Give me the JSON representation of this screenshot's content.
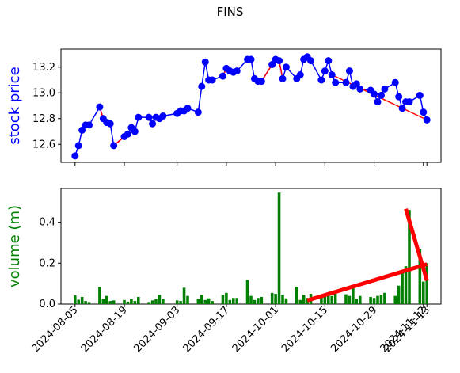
{
  "figure": {
    "title": "FINS"
  },
  "chart_data": [
    {
      "type": "line",
      "title": "",
      "xlabel": "",
      "ylabel": "stock price",
      "ylabel_color": "#0000ff",
      "ylim": [
        12.46,
        13.34
      ],
      "yticks": [
        "12.6",
        "12.8",
        "13.0",
        "13.2"
      ],
      "grid": false,
      "line_color": "#0000ff",
      "trend_color": "#ff0000",
      "x": [
        "2024-08-05",
        "2024-08-06",
        "2024-08-07",
        "2024-08-08",
        "2024-08-09",
        "2024-08-12",
        "2024-08-13",
        "2024-08-14",
        "2024-08-15",
        "2024-08-16",
        "2024-08-19",
        "2024-08-20",
        "2024-08-21",
        "2024-08-22",
        "2024-08-23",
        "2024-08-26",
        "2024-08-27",
        "2024-08-28",
        "2024-08-29",
        "2024-08-30",
        "2024-09-03",
        "2024-09-04",
        "2024-09-05",
        "2024-09-06",
        "2024-09-09",
        "2024-09-10",
        "2024-09-11",
        "2024-09-12",
        "2024-09-13",
        "2024-09-16",
        "2024-09-17",
        "2024-09-18",
        "2024-09-19",
        "2024-09-20",
        "2024-09-23",
        "2024-09-24",
        "2024-09-25",
        "2024-09-26",
        "2024-09-27",
        "2024-09-30",
        "2024-10-01",
        "2024-10-02",
        "2024-10-03",
        "2024-10-04",
        "2024-10-07",
        "2024-10-08",
        "2024-10-09",
        "2024-10-10",
        "2024-10-11",
        "2024-10-14",
        "2024-10-15",
        "2024-10-16",
        "2024-10-17",
        "2024-10-18",
        "2024-10-21",
        "2024-10-22",
        "2024-10-23",
        "2024-10-24",
        "2024-10-25",
        "2024-10-28",
        "2024-10-29",
        "2024-10-30",
        "2024-10-31",
        "2024-11-01",
        "2024-11-04",
        "2024-11-05",
        "2024-11-06",
        "2024-11-07",
        "2024-11-08",
        "2024-11-11",
        "2024-11-12",
        "2024-11-13"
      ],
      "values": [
        12.51,
        12.59,
        12.71,
        12.75,
        12.75,
        12.89,
        12.8,
        12.77,
        12.76,
        12.59,
        12.66,
        12.68,
        12.73,
        12.7,
        12.81,
        12.81,
        12.76,
        12.81,
        12.8,
        12.82,
        12.84,
        12.86,
        12.86,
        12.88,
        12.85,
        13.05,
        13.24,
        13.1,
        13.1,
        13.13,
        13.19,
        13.17,
        13.16,
        13.17,
        13.26,
        13.26,
        13.11,
        13.09,
        13.09,
        13.22,
        13.26,
        13.25,
        13.11,
        13.2,
        13.11,
        13.14,
        13.26,
        13.28,
        13.25,
        13.1,
        13.17,
        13.25,
        13.14,
        13.08,
        13.08,
        13.17,
        13.05,
        13.07,
        13.03,
        13.02,
        12.99,
        12.93,
        12.98,
        13.03,
        13.08,
        12.97,
        12.88,
        12.93,
        12.93,
        12.98,
        12.85,
        12.79
      ],
      "trendlines": [
        {
          "from": "2024-08-12",
          "to": "2024-08-13"
        },
        {
          "from": "2024-08-16",
          "to": "2024-08-19"
        },
        {
          "from": "2024-09-16",
          "to": "2024-09-17"
        },
        {
          "from": "2024-09-27",
          "to": "2024-09-30"
        },
        {
          "from": "2024-10-02",
          "to": "2024-10-03"
        },
        {
          "from": "2024-10-17",
          "to": "2024-11-13"
        }
      ]
    },
    {
      "type": "bar",
      "title": "",
      "xlabel": "",
      "ylabel": "volume (m)",
      "ylabel_color": "#008000",
      "ylim": [
        0,
        0.565
      ],
      "yticks": [
        "0.0",
        "0.2",
        "0.4"
      ],
      "grid": false,
      "bar_color": "#008000",
      "trend_color": "#ff0000",
      "xticks": [
        "2024-08-05",
        "2024-08-19",
        "2024-09-03",
        "2024-09-17",
        "2024-10-01",
        "2024-10-15",
        "2024-10-29",
        "2024-11-12",
        "2024-11-13"
      ],
      "x": [
        "2024-08-05",
        "2024-08-06",
        "2024-08-07",
        "2024-08-08",
        "2024-08-09",
        "2024-08-12",
        "2024-08-13",
        "2024-08-14",
        "2024-08-15",
        "2024-08-16",
        "2024-08-19",
        "2024-08-20",
        "2024-08-21",
        "2024-08-22",
        "2024-08-23",
        "2024-08-26",
        "2024-08-27",
        "2024-08-28",
        "2024-08-29",
        "2024-08-30",
        "2024-09-03",
        "2024-09-04",
        "2024-09-05",
        "2024-09-06",
        "2024-09-09",
        "2024-09-10",
        "2024-09-11",
        "2024-09-12",
        "2024-09-13",
        "2024-09-16",
        "2024-09-17",
        "2024-09-18",
        "2024-09-19",
        "2024-09-20",
        "2024-09-23",
        "2024-09-24",
        "2024-09-25",
        "2024-09-26",
        "2024-09-27",
        "2024-09-30",
        "2024-10-01",
        "2024-10-02",
        "2024-10-03",
        "2024-10-04",
        "2024-10-07",
        "2024-10-08",
        "2024-10-09",
        "2024-10-10",
        "2024-10-11",
        "2024-10-14",
        "2024-10-15",
        "2024-10-16",
        "2024-10-17",
        "2024-10-18",
        "2024-10-21",
        "2024-10-22",
        "2024-10-23",
        "2024-10-24",
        "2024-10-25",
        "2024-10-28",
        "2024-10-29",
        "2024-10-30",
        "2024-10-31",
        "2024-11-01",
        "2024-11-04",
        "2024-11-05",
        "2024-11-06",
        "2024-11-07",
        "2024-11-08",
        "2024-11-11",
        "2024-11-12",
        "2024-11-13"
      ],
      "values": [
        0.042,
        0.021,
        0.035,
        0.015,
        0.01,
        0.085,
        0.025,
        0.04,
        0.015,
        0.018,
        0.02,
        0.012,
        0.025,
        0.015,
        0.035,
        0.01,
        0.018,
        0.025,
        0.045,
        0.025,
        0.018,
        0.015,
        0.08,
        0.04,
        0.025,
        0.045,
        0.02,
        0.028,
        0.015,
        0.045,
        0.055,
        0.02,
        0.03,
        0.03,
        0.118,
        0.04,
        0.02,
        0.03,
        0.035,
        0.055,
        0.05,
        0.545,
        0.045,
        0.028,
        0.085,
        0.02,
        0.045,
        0.03,
        0.05,
        0.035,
        0.05,
        0.045,
        0.04,
        0.055,
        0.048,
        0.04,
        0.078,
        0.025,
        0.04,
        0.035,
        0.03,
        0.04,
        0.045,
        0.055,
        0.04,
        0.09,
        0.165,
        0.185,
        0.46,
        0.27,
        0.11,
        0.2
      ],
      "trendlines": [
        {
          "from": "2024-10-10",
          "to": "2024-11-13",
          "y_from": 0.018,
          "y_to": 0.195
        },
        {
          "from": "2024-11-07",
          "to": "2024-11-13",
          "y_from": 0.465,
          "y_to": 0.115
        }
      ]
    }
  ]
}
